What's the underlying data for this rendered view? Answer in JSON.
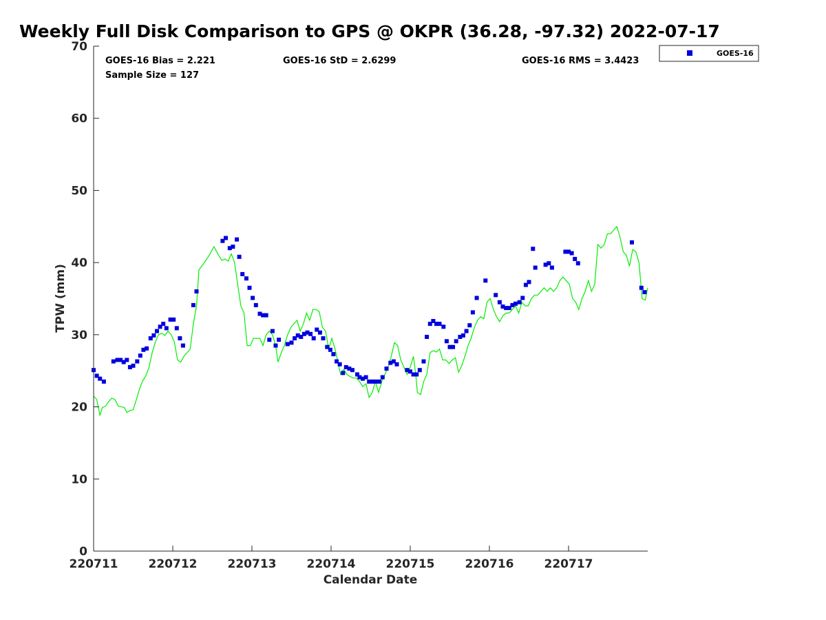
{
  "chart_data": {
    "type": "scatter",
    "title": "Weekly Full Disk Comparison to GPS @ OKPR (36.28, -97.32) 2022-07-17",
    "xlabel": "Calendar Date",
    "ylabel": "TPW (mm)",
    "xlim": [
      220711,
      220718
    ],
    "ylim": [
      0,
      70
    ],
    "x_ticks": [
      {
        "value": 0,
        "label": "220711"
      },
      {
        "value": 1,
        "label": "220712"
      },
      {
        "value": 2,
        "label": "220713"
      },
      {
        "value": 3,
        "label": "220714"
      },
      {
        "value": 4,
        "label": "220715"
      },
      {
        "value": 5,
        "label": "220716"
      },
      {
        "value": 6,
        "label": "220717"
      }
    ],
    "y_ticks": [
      0,
      10,
      20,
      30,
      40,
      50,
      60,
      70
    ],
    "grid": false,
    "legend": {
      "position": "top-right, outside plot",
      "entries": [
        "GOES-16"
      ]
    },
    "stats": {
      "bias": "GOES-16 Bias = 2.221",
      "std": "GOES-16 StD = 2.6299",
      "rms": "GOES-16 RMS = 3.4423",
      "sample": "Sample Size = 127"
    },
    "colors": {
      "goes": "#0000dd",
      "gps": "#00ee00",
      "axis": "#262626"
    },
    "series": [
      {
        "name": "GOES-16",
        "kind": "scatter",
        "points": [
          [
            0.0,
            25.1
          ],
          [
            0.04,
            24.3
          ],
          [
            0.08,
            23.9
          ],
          [
            0.13,
            23.5
          ],
          [
            0.25,
            26.3
          ],
          [
            0.3,
            26.5
          ],
          [
            0.34,
            26.5
          ],
          [
            0.38,
            26.2
          ],
          [
            0.42,
            26.5
          ],
          [
            0.46,
            25.5
          ],
          [
            0.5,
            25.7
          ],
          [
            0.55,
            26.3
          ],
          [
            0.59,
            27.1
          ],
          [
            0.63,
            27.9
          ],
          [
            0.67,
            28.1
          ],
          [
            0.72,
            29.5
          ],
          [
            0.76,
            29.9
          ],
          [
            0.8,
            30.5
          ],
          [
            0.84,
            31.1
          ],
          [
            0.88,
            31.5
          ],
          [
            0.92,
            30.9
          ],
          [
            0.97,
            32.1
          ],
          [
            1.01,
            32.1
          ],
          [
            1.05,
            30.9
          ],
          [
            1.09,
            29.5
          ],
          [
            1.13,
            28.5
          ],
          [
            1.26,
            34.1
          ],
          [
            1.3,
            36.0
          ],
          [
            1.63,
            43.0
          ],
          [
            1.67,
            43.4
          ],
          [
            1.72,
            42.0
          ],
          [
            1.76,
            42.2
          ],
          [
            1.81,
            43.2
          ],
          [
            1.84,
            40.8
          ],
          [
            1.88,
            38.4
          ],
          [
            1.93,
            37.8
          ],
          [
            1.97,
            36.5
          ],
          [
            2.01,
            35.1
          ],
          [
            2.05,
            34.1
          ],
          [
            2.1,
            32.9
          ],
          [
            2.14,
            32.7
          ],
          [
            2.18,
            32.7
          ],
          [
            2.22,
            29.3
          ],
          [
            2.26,
            30.5
          ],
          [
            2.3,
            28.5
          ],
          [
            2.34,
            29.3
          ],
          [
            2.45,
            28.7
          ],
          [
            2.5,
            28.9
          ],
          [
            2.54,
            29.5
          ],
          [
            2.58,
            29.9
          ],
          [
            2.62,
            29.7
          ],
          [
            2.66,
            30.1
          ],
          [
            2.7,
            30.3
          ],
          [
            2.74,
            30.1
          ],
          [
            2.78,
            29.5
          ],
          [
            2.82,
            30.7
          ],
          [
            2.86,
            30.3
          ],
          [
            2.9,
            29.5
          ],
          [
            2.95,
            28.3
          ],
          [
            2.99,
            27.9
          ],
          [
            3.03,
            27.3
          ],
          [
            3.07,
            26.3
          ],
          [
            3.11,
            25.9
          ],
          [
            3.15,
            24.7
          ],
          [
            3.19,
            25.5
          ],
          [
            3.23,
            25.3
          ],
          [
            3.27,
            25.1
          ],
          [
            3.33,
            24.5
          ],
          [
            3.36,
            24.1
          ],
          [
            3.4,
            23.9
          ],
          [
            3.44,
            24.1
          ],
          [
            3.48,
            23.5
          ],
          [
            3.52,
            23.5
          ],
          [
            3.56,
            23.5
          ],
          [
            3.61,
            23.5
          ],
          [
            3.65,
            24.1
          ],
          [
            3.7,
            25.3
          ],
          [
            3.75,
            26.1
          ],
          [
            3.79,
            26.3
          ],
          [
            3.83,
            25.9
          ],
          [
            3.96,
            25.1
          ],
          [
            4.0,
            24.9
          ],
          [
            4.04,
            24.5
          ],
          [
            4.08,
            24.5
          ],
          [
            4.12,
            25.1
          ],
          [
            4.17,
            26.3
          ],
          [
            4.21,
            29.7
          ],
          [
            4.25,
            31.5
          ],
          [
            4.29,
            31.9
          ],
          [
            4.33,
            31.5
          ],
          [
            4.37,
            31.5
          ],
          [
            4.42,
            31.1
          ],
          [
            4.46,
            29.1
          ],
          [
            4.5,
            28.3
          ],
          [
            4.54,
            28.3
          ],
          [
            4.58,
            29.1
          ],
          [
            4.63,
            29.7
          ],
          [
            4.67,
            29.9
          ],
          [
            4.71,
            30.5
          ],
          [
            4.75,
            31.3
          ],
          [
            4.79,
            33.1
          ],
          [
            4.84,
            35.1
          ],
          [
            4.95,
            37.5
          ],
          [
            5.08,
            35.5
          ],
          [
            5.13,
            34.5
          ],
          [
            5.17,
            33.9
          ],
          [
            5.21,
            33.7
          ],
          [
            5.25,
            33.7
          ],
          [
            5.29,
            34.1
          ],
          [
            5.33,
            34.3
          ],
          [
            5.38,
            34.5
          ],
          [
            5.42,
            35.1
          ],
          [
            5.46,
            36.9
          ],
          [
            5.5,
            37.3
          ],
          [
            5.55,
            41.9
          ],
          [
            5.58,
            39.3
          ],
          [
            5.71,
            39.7
          ],
          [
            5.75,
            39.9
          ],
          [
            5.79,
            39.3
          ],
          [
            5.96,
            41.5
          ],
          [
            6.0,
            41.5
          ],
          [
            6.04,
            41.3
          ],
          [
            6.08,
            40.5
          ],
          [
            6.12,
            39.9
          ],
          [
            6.8,
            42.8
          ],
          [
            6.92,
            36.5
          ],
          [
            6.96,
            35.9
          ]
        ]
      },
      {
        "name": "",
        "kind": "line",
        "points": [
          [
            0.0,
            21.5
          ],
          [
            0.04,
            21.0
          ],
          [
            0.08,
            18.8
          ],
          [
            0.11,
            19.9
          ],
          [
            0.15,
            20.1
          ],
          [
            0.19,
            20.7
          ],
          [
            0.23,
            21.2
          ],
          [
            0.27,
            21.0
          ],
          [
            0.31,
            20.1
          ],
          [
            0.35,
            20.0
          ],
          [
            0.39,
            19.9
          ],
          [
            0.42,
            19.2
          ],
          [
            0.46,
            19.5
          ],
          [
            0.5,
            19.6
          ],
          [
            0.54,
            21.0
          ],
          [
            0.58,
            22.5
          ],
          [
            0.62,
            23.6
          ],
          [
            0.66,
            24.3
          ],
          [
            0.7,
            25.5
          ],
          [
            0.74,
            27.5
          ],
          [
            0.78,
            29.0
          ],
          [
            0.82,
            30.0
          ],
          [
            0.86,
            30.2
          ],
          [
            0.9,
            29.9
          ],
          [
            0.94,
            30.5
          ],
          [
            0.98,
            30.0
          ],
          [
            1.02,
            29.0
          ],
          [
            1.06,
            26.5
          ],
          [
            1.1,
            26.2
          ],
          [
            1.14,
            27.0
          ],
          [
            1.18,
            27.5
          ],
          [
            1.22,
            28.0
          ],
          [
            1.26,
            31.5
          ],
          [
            1.3,
            34.0
          ],
          [
            1.33,
            39.0
          ],
          [
            1.4,
            40.0
          ],
          [
            1.46,
            41.0
          ],
          [
            1.52,
            42.2
          ],
          [
            1.58,
            41.0
          ],
          [
            1.62,
            40.3
          ],
          [
            1.66,
            40.5
          ],
          [
            1.7,
            40.2
          ],
          [
            1.74,
            41.2
          ],
          [
            1.78,
            40.0
          ],
          [
            1.82,
            37.0
          ],
          [
            1.86,
            34.0
          ],
          [
            1.9,
            33.0
          ],
          [
            1.94,
            28.5
          ],
          [
            1.98,
            28.5
          ],
          [
            2.02,
            29.5
          ],
          [
            2.06,
            29.5
          ],
          [
            2.1,
            29.5
          ],
          [
            2.14,
            28.5
          ],
          [
            2.18,
            30.0
          ],
          [
            2.22,
            30.5
          ],
          [
            2.26,
            30.0
          ],
          [
            2.3,
            28.5
          ],
          [
            2.33,
            26.2
          ],
          [
            2.37,
            27.5
          ],
          [
            2.41,
            28.5
          ],
          [
            2.45,
            30.0
          ],
          [
            2.49,
            31.0
          ],
          [
            2.53,
            31.5
          ],
          [
            2.57,
            32.0
          ],
          [
            2.61,
            30.5
          ],
          [
            2.65,
            31.5
          ],
          [
            2.69,
            33.0
          ],
          [
            2.73,
            32.0
          ],
          [
            2.77,
            33.5
          ],
          [
            2.81,
            33.5
          ],
          [
            2.85,
            33.2
          ],
          [
            2.89,
            31.0
          ],
          [
            2.93,
            30.5
          ],
          [
            2.97,
            28.0
          ],
          [
            3.01,
            29.5
          ],
          [
            3.05,
            28.0
          ],
          [
            3.09,
            26.0
          ],
          [
            3.12,
            24.5
          ],
          [
            3.16,
            25.2
          ],
          [
            3.2,
            24.5
          ],
          [
            3.24,
            24.2
          ],
          [
            3.28,
            24.0
          ],
          [
            3.32,
            24.0
          ],
          [
            3.36,
            23.5
          ],
          [
            3.4,
            22.8
          ],
          [
            3.44,
            23.2
          ],
          [
            3.48,
            21.3
          ],
          [
            3.52,
            22.0
          ],
          [
            3.56,
            23.5
          ],
          [
            3.6,
            22.0
          ],
          [
            3.64,
            23.5
          ],
          [
            3.68,
            24.5
          ],
          [
            3.72,
            25.5
          ],
          [
            3.76,
            27.0
          ],
          [
            3.8,
            28.9
          ],
          [
            3.84,
            28.5
          ],
          [
            3.88,
            26.5
          ],
          [
            3.92,
            25.5
          ],
          [
            3.96,
            24.5
          ],
          [
            4.0,
            25.5
          ],
          [
            4.04,
            27.0
          ],
          [
            4.07,
            24.5
          ],
          [
            4.09,
            22.0
          ],
          [
            4.13,
            21.7
          ],
          [
            4.17,
            23.5
          ],
          [
            4.21,
            24.5
          ],
          [
            4.25,
            27.5
          ],
          [
            4.29,
            27.8
          ],
          [
            4.33,
            27.6
          ],
          [
            4.37,
            28.0
          ],
          [
            4.41,
            26.5
          ],
          [
            4.45,
            26.5
          ],
          [
            4.49,
            26.0
          ],
          [
            4.53,
            26.5
          ],
          [
            4.57,
            26.8
          ],
          [
            4.61,
            24.8
          ],
          [
            4.65,
            25.7
          ],
          [
            4.69,
            27.0
          ],
          [
            4.73,
            28.5
          ],
          [
            4.77,
            29.5
          ],
          [
            4.81,
            31.0
          ],
          [
            4.85,
            32.0
          ],
          [
            4.89,
            32.5
          ],
          [
            4.93,
            32.2
          ],
          [
            4.97,
            34.5
          ],
          [
            5.01,
            35.0
          ],
          [
            5.05,
            33.5
          ],
          [
            5.09,
            32.5
          ],
          [
            5.13,
            31.8
          ],
          [
            5.17,
            32.6
          ],
          [
            5.21,
            33.0
          ],
          [
            5.25,
            33.0
          ],
          [
            5.29,
            33.5
          ],
          [
            5.33,
            34.0
          ],
          [
            5.37,
            33.0
          ],
          [
            5.41,
            34.5
          ],
          [
            5.45,
            34.0
          ],
          [
            5.49,
            34.0
          ],
          [
            5.53,
            35.0
          ],
          [
            5.57,
            35.5
          ],
          [
            5.61,
            35.5
          ],
          [
            5.65,
            36.0
          ],
          [
            5.69,
            36.5
          ],
          [
            5.73,
            36.0
          ],
          [
            5.77,
            36.5
          ],
          [
            5.81,
            36.0
          ],
          [
            5.85,
            36.5
          ],
          [
            5.89,
            37.5
          ],
          [
            5.93,
            38.0
          ],
          [
            5.97,
            37.5
          ],
          [
            6.01,
            37.0
          ],
          [
            6.05,
            35.0
          ],
          [
            6.09,
            34.5
          ],
          [
            6.13,
            33.5
          ],
          [
            6.17,
            35.0
          ],
          [
            6.21,
            36.0
          ],
          [
            6.25,
            37.5
          ],
          [
            6.29,
            36.0
          ],
          [
            6.33,
            37.0
          ],
          [
            6.37,
            42.5
          ],
          [
            6.41,
            42.0
          ],
          [
            6.45,
            42.5
          ],
          [
            6.49,
            44.0
          ],
          [
            6.53,
            44.0
          ],
          [
            6.57,
            44.5
          ],
          [
            6.61,
            45.0
          ],
          [
            6.65,
            43.5
          ],
          [
            6.69,
            41.5
          ],
          [
            6.73,
            41.0
          ],
          [
            6.77,
            39.5
          ],
          [
            6.81,
            41.8
          ],
          [
            6.85,
            41.5
          ],
          [
            6.89,
            40.0
          ],
          [
            6.93,
            35.0
          ],
          [
            6.97,
            34.8
          ],
          [
            7.0,
            36.5
          ]
        ]
      }
    ]
  }
}
